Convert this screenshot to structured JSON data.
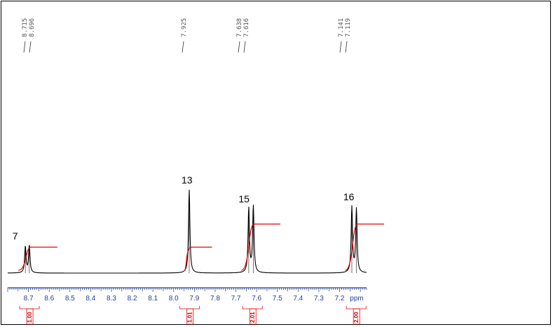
{
  "chart_data": {
    "type": "line",
    "xlabel": "ppm",
    "xlim": [
      8.8,
      7.07
    ],
    "x_ticks": [
      "8.7",
      "8.6",
      "8.5",
      "8.4",
      "8.3",
      "8.2",
      "8.1",
      "8.0",
      "7.9",
      "7.8",
      "7.7",
      "7.6",
      "7.5",
      "7.4",
      "7.3",
      "7.2"
    ],
    "peak_labels": [
      "8.715",
      "8.696",
      "7.925",
      "7.638",
      "7.616",
      "7.141",
      "7.119"
    ],
    "peaks": [
      {
        "ppm": 8.715,
        "height": 0.27
      },
      {
        "ppm": 8.696,
        "height": 0.28
      },
      {
        "ppm": 7.925,
        "height": 0.85
      },
      {
        "ppm": 7.638,
        "height": 0.66
      },
      {
        "ppm": 7.616,
        "height": 0.68
      },
      {
        "ppm": 7.141,
        "height": 0.67
      },
      {
        "ppm": 7.119,
        "height": 0.65
      }
    ],
    "assignments": [
      {
        "label": "7",
        "ppm": 8.75,
        "height": 0.3
      },
      {
        "label": "13",
        "ppm": 7.935,
        "height": 0.87
      },
      {
        "label": "15",
        "ppm": 7.66,
        "height": 0.68
      },
      {
        "label": "16",
        "ppm": 7.155,
        "height": 0.7
      }
    ],
    "integrals": [
      {
        "label": "1.00",
        "from": 8.735,
        "to": 8.655,
        "rise": 0.44
      },
      {
        "label": "1.01",
        "from": 7.935,
        "to": 7.91,
        "rise": 0.44
      },
      {
        "label": "2.01",
        "from": 7.66,
        "to": 7.58,
        "rise": 0.88
      },
      {
        "label": "2.00",
        "from": 7.16,
        "to": 7.08,
        "rise": 0.88
      }
    ],
    "colors": {
      "spectrum": "#000000",
      "integral": "#e00000",
      "axis": "#1f3f9a"
    }
  }
}
